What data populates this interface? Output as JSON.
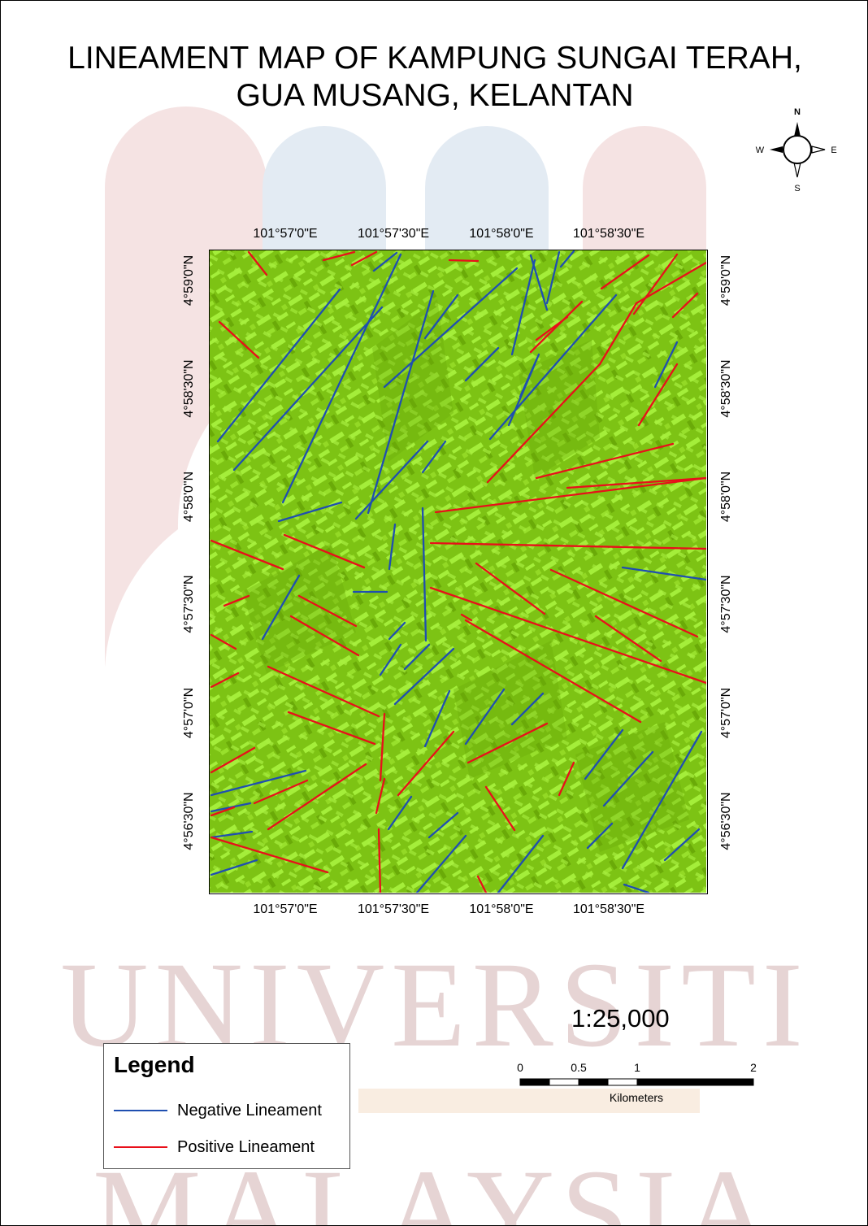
{
  "title": {
    "line1": "LINEAMENT MAP OF KAMPUNG SUNGAI TERAH,",
    "line2": "GUA MUSANG, KELANTAN"
  },
  "compass": {
    "north": "N",
    "south": "S",
    "east": "E",
    "west": "W"
  },
  "graticule": {
    "longitude_labels": [
      "101°57'0\"E",
      "101°57'30\"E",
      "101°58'0\"E",
      "101°58'30\"E"
    ],
    "latitude_labels": [
      "4°59'0\"N",
      "4°58'30\"N",
      "4°58'0\"N",
      "4°57'30\"N",
      "4°57'0\"N",
      "4°56'30\"N"
    ]
  },
  "scale": {
    "ratio": "1:25,000",
    "bar_labels": [
      "0",
      "0.5",
      "1",
      "2"
    ],
    "unit": "Kilometers"
  },
  "legend": {
    "title": "Legend",
    "items": [
      {
        "label": "Negative Lineament",
        "color": "#1f4fb0"
      },
      {
        "label": "Positive Lineament",
        "color": "#e8101a"
      }
    ]
  },
  "colors": {
    "negative_lineament": "#1f4fb0",
    "positive_lineament": "#e8101a",
    "terrain_base": "#7dc314",
    "terrain_light": "#a4ee3a",
    "terrain_dark": "#6aaa08"
  },
  "watermark": {
    "line1": "UNIVERSITI",
    "line2": "MALAYSIA"
  }
}
